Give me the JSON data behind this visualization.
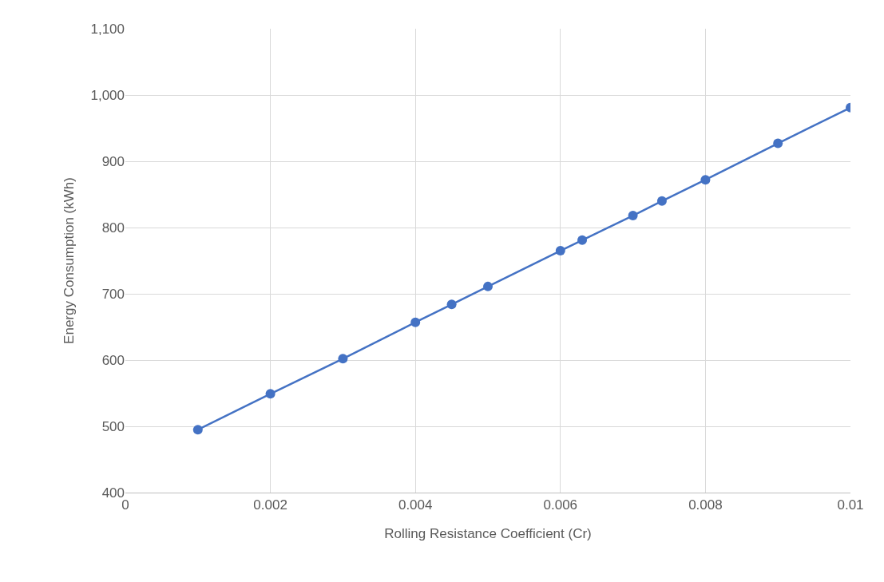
{
  "chart_data": {
    "type": "line",
    "xlabel": "Rolling Resistance Coefficient (Cr)",
    "ylabel": "Energy Consumption (kWh)",
    "x": [
      0.001,
      0.002,
      0.003,
      0.004,
      0.0045,
      0.005,
      0.006,
      0.0063,
      0.007,
      0.0074,
      0.008,
      0.009,
      0.01
    ],
    "series": [
      {
        "color": "#4472c4",
        "values": [
          495,
          549,
          602,
          657,
          684,
          711,
          765,
          781,
          818,
          840,
          872,
          927,
          981
        ]
      }
    ],
    "xlim": [
      0,
      0.01
    ],
    "xticks": [
      0,
      0.002,
      0.004,
      0.006,
      0.008,
      0.01
    ],
    "ylim": [
      400,
      1100
    ],
    "yticks": [
      400,
      500,
      600,
      700,
      800,
      900,
      {
        "value": 1000,
        "label": "1,000"
      },
      {
        "value": 1100,
        "label": "1,100"
      }
    ],
    "grid": true,
    "marker": "circle",
    "line_style": "solid"
  }
}
